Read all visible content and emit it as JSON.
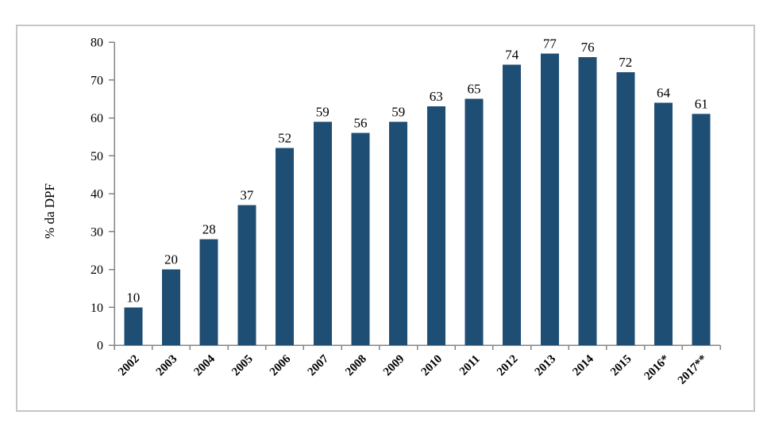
{
  "chart_data": {
    "type": "bar",
    "title": "",
    "xlabel": "",
    "ylabel": "% da DPF",
    "categories": [
      "2002",
      "2003",
      "2004",
      "2005",
      "2006",
      "2007",
      "2008",
      "2009",
      "2010",
      "2011",
      "2012",
      "2013",
      "2014",
      "2015",
      "2016*",
      "2017**"
    ],
    "values": [
      10,
      20,
      28,
      37,
      52,
      59,
      56,
      59,
      63,
      65,
      74,
      77,
      76,
      72,
      64,
      61
    ],
    "data_labels": [
      10,
      20,
      28,
      37,
      52,
      59,
      56,
      59,
      63,
      65,
      74,
      77,
      76,
      72,
      64,
      61
    ],
    "ylim": [
      0,
      80
    ],
    "yticks": [
      0,
      10,
      20,
      30,
      40,
      50,
      60,
      70,
      80
    ],
    "grid": false,
    "legend": false,
    "x_label_rotation_deg": -45,
    "colors": {
      "bar": "#1F4E74",
      "axis": "#848484",
      "text": "#000000",
      "frame": "#C6C6C6",
      "background": "#FFFFFF"
    }
  }
}
